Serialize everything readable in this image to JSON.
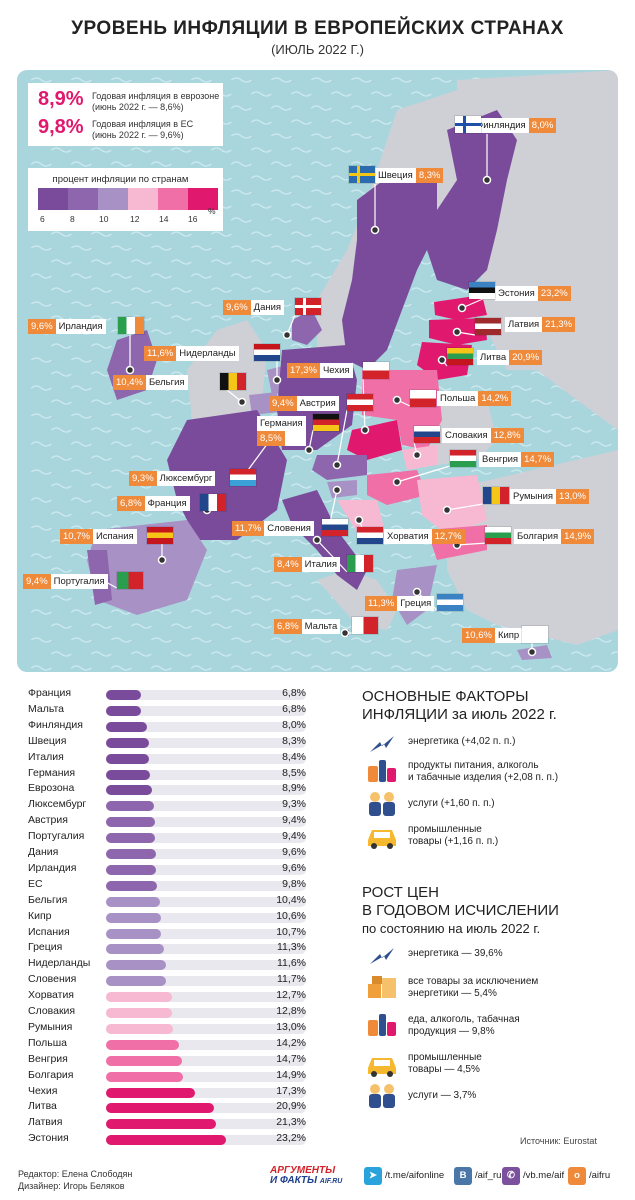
{
  "header": {
    "title": "УРОВЕНЬ ИНФЛЯЦИИ В ЕВРОПЕЙСКИХ СТРАНАХ",
    "subtitle": "(ИЮЛЬ 2022 Г.)"
  },
  "summary": {
    "eurozone_value": "8,9%",
    "eurozone_text_1": "Годовая инфляция в еврозоне",
    "eurozone_text_2": "(июнь 2022 г. — 8,6%)",
    "eu_value": "9,8%",
    "eu_text_1": "Годовая инфляция в ЕС",
    "eu_text_2": "(июнь 2022 г. — 9,6%)"
  },
  "legend": {
    "title": "процент инфляции по странам",
    "ticks": [
      "6",
      "8",
      "10",
      "12",
      "14",
      "16"
    ],
    "unit": "%",
    "colors": [
      "#7a4b9a",
      "#8d66ad",
      "#a891c4",
      "#f7b8d2",
      "#ef6fa6",
      "#e0196e"
    ]
  },
  "colors": {
    "sea": "#a9d6dd",
    "land_gray": "#cfcfd6",
    "accent_pink": "#e0196e",
    "label_orange": "#f08a3b"
  },
  "map_labels": [
    {
      "name": "Финляндия",
      "value": "8,0%"
    },
    {
      "name": "Швеция",
      "value": "8,3%"
    },
    {
      "name": "Эстония",
      "value": "23,2%"
    },
    {
      "name": "Дания",
      "value": "9,6%"
    },
    {
      "name": "Латвия",
      "value": "21,3%"
    },
    {
      "name": "Ирландия",
      "value": "9,6%"
    },
    {
      "name": "Нидерланды",
      "value": "11,6%"
    },
    {
      "name": "Литва",
      "value": "20,9%"
    },
    {
      "name": "Бельгия",
      "value": "10,4%"
    },
    {
      "name": "Чехия",
      "value": "17,3%"
    },
    {
      "name": "Польша",
      "value": "14,2%"
    },
    {
      "name": "Австрия",
      "value": "9,4%"
    },
    {
      "name": "Германия",
      "value": "8,5%"
    },
    {
      "name": "Словакия",
      "value": "12,8%"
    },
    {
      "name": "Венгрия",
      "value": "14,7%"
    },
    {
      "name": "Люксембург",
      "value": "9,3%"
    },
    {
      "name": "Франция",
      "value": "6,8%"
    },
    {
      "name": "Румыния",
      "value": "13,0%"
    },
    {
      "name": "Словения",
      "value": "11,7%"
    },
    {
      "name": "Испания",
      "value": "10,7%"
    },
    {
      "name": "Хорватия",
      "value": "12,7%"
    },
    {
      "name": "Болгария",
      "value": "14,9%"
    },
    {
      "name": "Италия",
      "value": "8,4%"
    },
    {
      "name": "Португалия",
      "value": "9,4%"
    },
    {
      "name": "Греция",
      "value": "11,3%"
    },
    {
      "name": "Мальта",
      "value": "6,8%"
    },
    {
      "name": "Кипр",
      "value": "10,6%"
    }
  ],
  "chart_data": {
    "type": "bar",
    "orientation": "horizontal",
    "title": "процент инфляции по странам",
    "xlim": [
      0,
      24
    ],
    "unit": "%",
    "categories": [
      "Франция",
      "Мальта",
      "Финляндия",
      "Швеция",
      "Италия",
      "Германия",
      "Еврозона",
      "Люксембург",
      "Австрия",
      "Португалия",
      "Дания",
      "Ирландия",
      "ЕС",
      "Бельгия",
      "Кипр",
      "Испания",
      "Греция",
      "Нидерланды",
      "Словения",
      "Хорватия",
      "Словакия",
      "Румыния",
      "Польша",
      "Венгрия",
      "Болгария",
      "Чехия",
      "Литва",
      "Латвия",
      "Эстония"
    ],
    "values": [
      6.8,
      6.8,
      8.0,
      8.3,
      8.4,
      8.5,
      8.9,
      9.3,
      9.4,
      9.4,
      9.6,
      9.6,
      9.8,
      10.4,
      10.6,
      10.7,
      11.3,
      11.6,
      11.7,
      12.7,
      12.8,
      13.0,
      14.2,
      14.7,
      14.9,
      17.3,
      20.9,
      21.3,
      23.2
    ],
    "labels": [
      "6,8%",
      "6,8%",
      "8,0%",
      "8,3%",
      "8,4%",
      "8,5%",
      "8,9%",
      "9,3%",
      "9,4%",
      "9,4%",
      "9,6%",
      "9,6%",
      "9,8%",
      "10,4%",
      "10,6%",
      "10,7%",
      "11,3%",
      "11,6%",
      "11,7%",
      "12,7%",
      "12,8%",
      "13,0%",
      "14,2%",
      "14,7%",
      "14,9%",
      "17,3%",
      "20,9%",
      "21,3%",
      "23,2%"
    ]
  },
  "factors": {
    "title_1": "ОСНОВНЫЕ ФАКТОРЫ",
    "title_2": "ИНФЛЯЦИИ за июль 2022 г.",
    "items": [
      {
        "icon": "lightning-icon",
        "line1": "энергетика (+4,02 п. п.)",
        "line2": ""
      },
      {
        "icon": "groceries-icon",
        "line1": "продукты питания, алкоголь",
        "line2": "и табачные изделия (+2,08 п. п.)"
      },
      {
        "icon": "workers-icon",
        "line1": "услуги (+1,60 п. п.)",
        "line2": ""
      },
      {
        "icon": "car-icon",
        "line1": "промышленные",
        "line2": "товары (+1,16 п. п.)"
      }
    ]
  },
  "growth": {
    "title_1": "РОСТ ЦЕН",
    "title_2": "В ГОДОВОМ ИСЧИСЛЕНИИ",
    "title_3": "по состоянию на июль 2022 г.",
    "items": [
      {
        "icon": "lightning-icon",
        "line1": "энергетика — 39,6%",
        "line2": ""
      },
      {
        "icon": "boxes-icon",
        "line1": "все товары за исключением",
        "line2": "энергетики — 5,4%"
      },
      {
        "icon": "groceries-icon",
        "line1": "еда, алкоголь, табачная",
        "line2": "продукция — 9,8%"
      },
      {
        "icon": "car-icon",
        "line1": "промышленные",
        "line2": "товары — 4,5%"
      },
      {
        "icon": "workers-icon",
        "line1": "услуги — 3,7%",
        "line2": ""
      }
    ]
  },
  "source": "Источник: Eurostat",
  "footer": {
    "editor": "Редактор: Елена Слободян",
    "designer": "Дизайнер: Игорь Беляков",
    "logo_1": "АРГУМЕНТЫ",
    "logo_2": "И ФАКТЫ",
    "logo_domain": "AIF.RU",
    "telegram": "/t.me/aifonline",
    "vk": "/aif_ru",
    "viber": "/vb.me/aif",
    "ok": "/aifru"
  }
}
